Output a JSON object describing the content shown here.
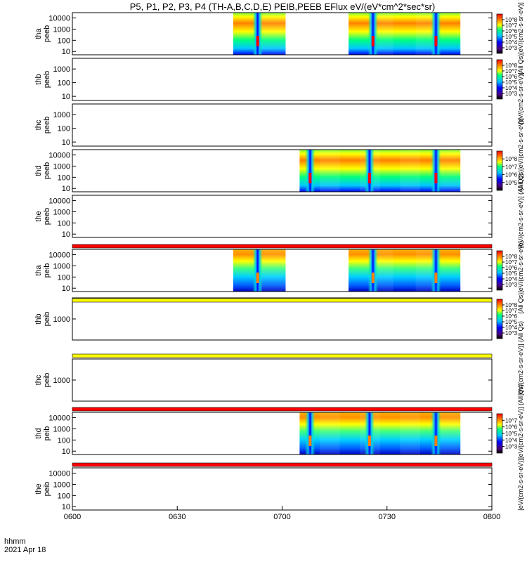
{
  "chart_data": {
    "type": "heatmap",
    "title": "P5, P1, P2, P3, P4 (TH-A,B,C,D,E) PEIB,PEEB EFlux eV/(eV*cm^2*sec*sr)",
    "x_range": [
      "0600",
      "0800"
    ],
    "x_ticks": [
      "0600",
      "0630",
      "0700",
      "0730",
      "0800"
    ],
    "x_axis_labels": [
      "hhmm",
      "2021 Apr 18"
    ],
    "y_scale": "log",
    "panels": [
      {
        "id": "tha-peeb",
        "probe": "tha",
        "label": [
          "tha",
          "peeb"
        ],
        "yticks": [
          "10",
          "100",
          "1000",
          "10000"
        ],
        "ylim": [
          5,
          30000
        ],
        "data_intervals": [
          [
            "0646",
            "0701"
          ],
          [
            "0719",
            "0751"
          ]
        ],
        "dips": [
          "0653",
          "0726",
          "0744"
        ],
        "colorbar": {
          "ticks": [
            "10^3",
            "10^4",
            "10^5",
            "10^6",
            "10^7",
            "10^8"
          ],
          "range": [
            "10^3",
            "10^9"
          ]
        }
      },
      {
        "id": "thb-peeb",
        "probe": "thb",
        "label": [
          "thb",
          "peeb"
        ],
        "yticks": [
          "10",
          "100",
          "1000"
        ],
        "ylim": [
          5,
          6000
        ],
        "data_intervals": [],
        "dips": [],
        "colorbar": {
          "ticks": [
            "10^3",
            "10^4",
            "10^5",
            "10^6",
            "10^7",
            "10^8"
          ],
          "range": [
            "10^3",
            "10^9"
          ]
        }
      },
      {
        "id": "thc-peeb",
        "probe": "thc",
        "label": [
          "thc",
          "peeb"
        ],
        "yticks": [
          "10",
          "100",
          "1000"
        ],
        "ylim": [
          5,
          6000
        ],
        "data_intervals": [],
        "dips": [],
        "colorbar": null
      },
      {
        "id": "thd-peeb",
        "probe": "thd",
        "label": [
          "thd",
          "peeb"
        ],
        "yticks": [
          "10",
          "100",
          "1000",
          "10000"
        ],
        "ylim": [
          5,
          30000
        ],
        "data_intervals": [
          [
            "0705",
            "0751"
          ]
        ],
        "dips": [
          "0708",
          "0725",
          "0744"
        ],
        "colorbar": {
          "ticks": [
            "10^5",
            "10^6",
            "10^7",
            "10^8"
          ],
          "range": [
            "10^4",
            "10^9"
          ]
        }
      },
      {
        "id": "the-peeb",
        "probe": "the",
        "label": [
          "the",
          "peeb"
        ],
        "yticks": [
          "10",
          "100",
          "1000",
          "10000"
        ],
        "ylim": [
          5,
          30000
        ],
        "data_intervals": [],
        "dips": [],
        "colorbar": null
      },
      {
        "id": "tha-peib",
        "probe": "tha",
        "label": [
          "tha",
          "peib"
        ],
        "yticks": [
          "10",
          "100",
          "1000",
          "10000"
        ],
        "ylim": [
          5,
          30000
        ],
        "data_intervals": [
          [
            "0646",
            "0701"
          ],
          [
            "0719",
            "0751"
          ]
        ],
        "dips": [
          "0653",
          "0726",
          "0744"
        ],
        "colorbar": {
          "ticks": [
            "10^3",
            "10^4",
            "10^5",
            "10^6",
            "10^7",
            "10^8"
          ],
          "range": [
            "10^3",
            "10^9"
          ]
        }
      },
      {
        "id": "thb-peib",
        "probe": "thb",
        "label": [
          "thb",
          "peib"
        ],
        "yticks": [
          "1000"
        ],
        "ylim": [
          100,
          10000
        ],
        "data_intervals": [],
        "dips": [],
        "colorbar": {
          "ticks": [
            "10^3",
            "10^4",
            "10^5",
            "10^6",
            "10^7",
            "10^8"
          ],
          "range": [
            "10^3",
            "10^9"
          ]
        }
      },
      {
        "id": "thc-peib",
        "probe": "thc",
        "label": [
          "thc",
          "peib"
        ],
        "yticks": [
          "1000"
        ],
        "ylim": [
          100,
          10000
        ],
        "data_intervals": [],
        "dips": [],
        "colorbar": null
      },
      {
        "id": "thd-peib",
        "probe": "thd",
        "label": [
          "thd",
          "peib"
        ],
        "yticks": [
          "10",
          "100",
          "1000",
          "10000"
        ],
        "ylim": [
          5,
          30000
        ],
        "data_intervals": [
          [
            "0705",
            "0751"
          ]
        ],
        "dips": [
          "0708",
          "0725",
          "0744"
        ],
        "colorbar": {
          "ticks": [
            "10^3",
            "10^4",
            "10^5",
            "10^6",
            "10^7"
          ],
          "range": [
            "10^3",
            "10^7"
          ]
        }
      },
      {
        "id": "the-peib",
        "probe": "the",
        "label": [
          "the",
          "peib"
        ],
        "yticks": [
          "10",
          "100",
          "1000",
          "10000"
        ],
        "ylim": [
          5,
          30000
        ],
        "data_intervals": [],
        "dips": [],
        "colorbar": null
      }
    ],
    "colorbar_titles": [
      "(All Qs)[eV/(cm2-s-sr-eV)]",
      "[eV/(cm2-s-sr-eV)]",
      "(All Qs)[eV/(cm2-s-sr-eV)]",
      "[eV/(cm2-s-sr-eV)] (All Qs)",
      "(All Qs)[eV/(cm2-s-sr-eV)]",
      "[eV/(cm2-s-sr-eV)] (All Qs)",
      "[eV/(cm2-s-sr-eV)] (All Qs)",
      "[eV/(cm2-s-sr-eV)]"
    ],
    "status_bars": [
      {
        "color": "#ff0000",
        "after_panel": "the-peeb"
      },
      {
        "color": "#ffff00",
        "after_panel": "tha-peib"
      },
      {
        "color": "#ffff00",
        "after_panel": "thb-peib"
      },
      {
        "color": "#ff0000",
        "after_panel": "thc-peib"
      },
      {
        "color": "#ff0000",
        "after_panel": "thd-peib"
      }
    ],
    "colormap": [
      "#000000",
      "#4b0082",
      "#0000ff",
      "#00c8ff",
      "#00ff80",
      "#ffff00",
      "#ff8000",
      "#ff0000"
    ]
  }
}
